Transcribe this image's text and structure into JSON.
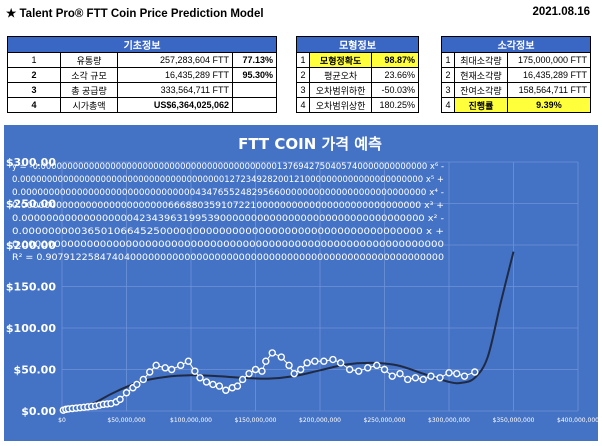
{
  "header": {
    "title": "★ Talent Pro® FTT Coin Price Prediction Model",
    "date": "2021.08.16"
  },
  "basic_info": {
    "title": "기초정보",
    "rows": [
      {
        "no": "1",
        "label": "유통량",
        "value": "257,283,604 FTT",
        "pct": "77.13%"
      },
      {
        "no": "2",
        "label": "소각 규모",
        "value": "16,435,289 FTT",
        "pct": "95.30%"
      },
      {
        "no": "3",
        "label": "총 공급량",
        "value": "333,564,711 FTT",
        "pct": ""
      },
      {
        "no": "4",
        "label": "시가총액",
        "value": "US$6,364,025,062",
        "pct": ""
      }
    ]
  },
  "model_info": {
    "title": "모형정보",
    "rows": [
      {
        "no": "1",
        "label": "모형정확도",
        "value": "98.87%"
      },
      {
        "no": "2",
        "label": "평균오차",
        "value": "23.66%"
      },
      {
        "no": "3",
        "label": "오차범위하한",
        "value": "-50.03%"
      },
      {
        "no": "4",
        "label": "오차범위상한",
        "value": "180.25%"
      }
    ]
  },
  "burn_info": {
    "title": "소각정보",
    "rows": [
      {
        "no": "1",
        "label": "최대소각량",
        "value": "175,000,000 FTT"
      },
      {
        "no": "2",
        "label": "현재소각량",
        "value": "16,435,289 FTT"
      },
      {
        "no": "3",
        "label": "잔여소각량",
        "value": "158,564,711 FTT"
      },
      {
        "no": "4",
        "label": "진행률",
        "value": "9.39%"
      }
    ]
  },
  "colors": {
    "header_blue": "#3a66c4",
    "plot_bg": "#4472c4",
    "highlight": "#ffff3c",
    "trend": "#1f2a44",
    "marker": "#ffffff"
  },
  "chart_data": {
    "type": "scatter",
    "title": "FTT COIN 가격 예측",
    "xlabel": "",
    "ylabel": "",
    "xlim": [
      0,
      400000000
    ],
    "ylim": [
      0,
      300
    ],
    "x_ticks": [
      "$0",
      "$50,000,000",
      "$100,000,000",
      "$150,000,000",
      "$200,000,000",
      "$250,000,000",
      "$300,000,000",
      "$350,000,000",
      "$400,000,000"
    ],
    "y_ticks": [
      "$0.00",
      "$50.00",
      "$100.00",
      "$150.00",
      "$200.00",
      "$250.00",
      "$300.00"
    ],
    "grid": true,
    "equation_lines": [
      "y = -0.000000000000000000000000000000000000000000001376942750405740000000000000 x⁶ -",
      "0.000000000000000000000000000000000000001272349282001210000000000000000000000 x⁵ +",
      "0.000000000000000000000000000000043476552482956600000000000000000000000000 x⁴ -",
      "0.00000000000000000000000006668803591072210000000000000000000000000000 x³ +",
      "0.00000000000000000042343963199539000000000000000000000000000000000 x² -",
      "0.0000000003650106645250000000000000000000000000000000000000000 x +",
      "0.00000000000000000000000000000000000000000000000000000000000000000",
      "R² = 0.907912258474040000000000000000000000000000000000000000000000000000"
    ],
    "series": [
      {
        "kind": "points",
        "x": [
          1000000,
          3000000,
          5000000,
          8000000,
          11000000,
          14000000,
          17000000,
          20000000,
          23000000,
          26000000,
          29000000,
          32000000,
          35000000,
          38000000,
          42000000,
          45000000,
          50000000,
          55000000,
          58000000,
          63000000,
          68000000,
          73000000,
          80000000,
          85000000,
          92000000,
          98000000,
          103000000,
          107000000,
          112000000,
          117000000,
          122000000,
          127000000,
          132000000,
          136000000,
          140000000,
          145000000,
          150000000,
          155000000,
          158000000,
          163000000,
          170000000,
          176000000,
          180000000,
          185000000,
          190000000,
          196000000,
          203000000,
          210000000,
          216000000,
          223000000,
          230000000,
          237000000,
          244000000,
          250000000,
          256000000,
          262000000,
          268000000,
          274000000,
          280000000,
          286000000,
          293000000,
          300000000,
          306000000,
          312000000,
          320000000
        ],
        "y": [
          1,
          2,
          2.5,
          3,
          3.5,
          4,
          4.5,
          5,
          5.5,
          6,
          7,
          8,
          8.5,
          9,
          11,
          14,
          22,
          28,
          32,
          38,
          47,
          55,
          52,
          50,
          55,
          60,
          48,
          40,
          35,
          32,
          30,
          25,
          28,
          30,
          38,
          45,
          50,
          48,
          60,
          70,
          65,
          55,
          45,
          50,
          58,
          60,
          60,
          62,
          58,
          50,
          48,
          52,
          55,
          50,
          42,
          45,
          38,
          40,
          38,
          42,
          40,
          46,
          45,
          42,
          47
        ]
      },
      {
        "kind": "trendline",
        "x": [
          0,
          20000000,
          40000000,
          60000000,
          80000000,
          100000000,
          120000000,
          140000000,
          160000000,
          180000000,
          200000000,
          220000000,
          240000000,
          260000000,
          280000000,
          300000000,
          310000000,
          320000000,
          330000000,
          340000000,
          350000000
        ],
        "y": [
          0,
          6,
          22,
          35,
          41,
          43,
          42,
          40,
          39,
          42,
          49,
          56,
          58,
          55,
          45,
          35,
          34,
          40,
          65,
          130,
          192
        ]
      }
    ]
  }
}
